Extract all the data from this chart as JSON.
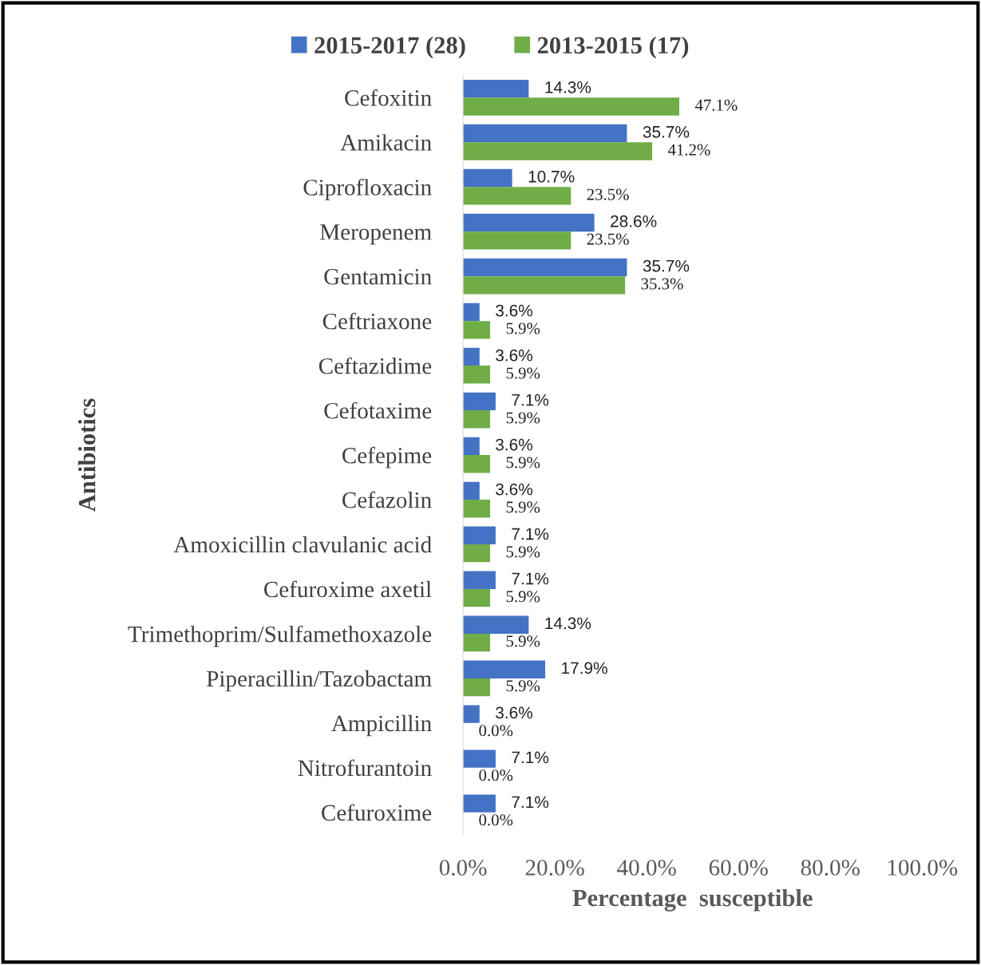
{
  "chart_data": {
    "type": "bar",
    "orientation": "horizontal",
    "ylabel": "Antibiotics",
    "xlabel": "Percentage  susceptible",
    "categories": [
      "Cefoxitin",
      "Amikacin",
      "Ciprofloxacin",
      "Meropenem",
      "Gentamicin",
      "Ceftriaxone",
      "Ceftazidime",
      "Cefotaxime",
      "Cefepime",
      "Cefazolin",
      "Amoxicillin clavulanic acid",
      "Cefuroxime axetil",
      "Trimethoprim/Sulfamethoxazole",
      "Piperacillin/Tazobactam",
      "Ampicillin",
      "Nitrofurantoin",
      "Cefuroxime"
    ],
    "series": [
      {
        "name": "2015-2017 (28)",
        "color": "#4472c4",
        "values": [
          14.3,
          35.7,
          10.7,
          28.6,
          35.7,
          3.6,
          3.6,
          7.1,
          3.6,
          3.6,
          7.1,
          7.1,
          14.3,
          17.9,
          3.6,
          7.1,
          7.1
        ],
        "value_labels": [
          "14.3%",
          "35.7%",
          "10.7%",
          "28.6%",
          "35.7%",
          "3.6%",
          "3.6%",
          "7.1%",
          "3.6%",
          "3.6%",
          "7.1%",
          "7.1%",
          "14.3%",
          "17.9%",
          "3.6%",
          "7.1%",
          "7.1%"
        ]
      },
      {
        "name": "2013-2015 (17)",
        "color": "#70ad47",
        "values": [
          47.1,
          41.2,
          23.5,
          23.5,
          35.3,
          5.9,
          5.9,
          5.9,
          5.9,
          5.9,
          5.9,
          5.9,
          5.9,
          5.9,
          0.0,
          0.0,
          0.0
        ],
        "value_labels": [
          "47.1%",
          "41.2%",
          "23.5%",
          "23.5%",
          "35.3%",
          "5.9%",
          "5.9%",
          "5.9%",
          "5.9%",
          "5.9%",
          "5.9%",
          "5.9%",
          "5.9%",
          "5.9%",
          "0.0%",
          "0.0%",
          "0.0%"
        ]
      }
    ],
    "xlim": [
      0,
      100
    ],
    "xticks": [
      {
        "value": 0,
        "label": "0.0%"
      },
      {
        "value": 20,
        "label": "20.0%"
      },
      {
        "value": 40,
        "label": "40.0%"
      },
      {
        "value": 60,
        "label": "60.0%"
      },
      {
        "value": 80,
        "label": "80.0%"
      },
      {
        "value": 100,
        "label": "100.0%"
      }
    ],
    "grid": false,
    "legend": "top"
  }
}
